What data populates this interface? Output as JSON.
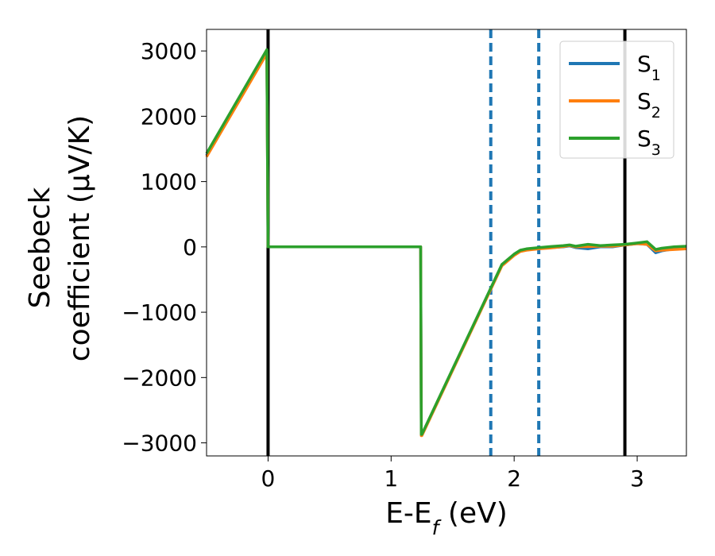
{
  "chart_data": {
    "type": "line",
    "xlabel": "E-E_f (eV)",
    "ylabel_line1": "Seebeck",
    "ylabel_line2": "coefficient  (μV/K)",
    "xlim": [
      -0.5,
      3.4
    ],
    "ylim": [
      -3200,
      3330
    ],
    "x_ticks": [
      0,
      1,
      2,
      3
    ],
    "y_ticks": [
      -3000,
      -2000,
      -1000,
      0,
      1000,
      2000,
      3000
    ],
    "y_tick_labels": [
      "−3000",
      "−2000",
      "−1000",
      "0",
      "1000",
      "2000",
      "3000"
    ],
    "grid": false,
    "legend_position": "top-right",
    "vlines": [
      {
        "x": 0.0,
        "style": "solid",
        "color": "#000000"
      },
      {
        "x": 2.9,
        "style": "solid",
        "color": "#000000"
      },
      {
        "x": 1.81,
        "style": "dashed",
        "color": "#1f77b4"
      },
      {
        "x": 2.2,
        "style": "dashed",
        "color": "#1f77b4"
      }
    ],
    "series": [
      {
        "name": "S1",
        "label_base": "S",
        "label_sub": "1",
        "color": "#1f77b4",
        "x": [
          -0.5,
          -0.01,
          0.0,
          0.02,
          1.24,
          1.245,
          1.25,
          1.5,
          1.75,
          1.9,
          2.0,
          2.05,
          2.1,
          2.2,
          2.3,
          2.4,
          2.45,
          2.5,
          2.6,
          2.7,
          2.8,
          2.9,
          3.0,
          3.08,
          3.15,
          3.2,
          3.3,
          3.4
        ],
        "y": [
          1400,
          2990,
          0,
          0,
          0,
          -2880,
          -2880,
          -1880,
          -880,
          -280,
          -120,
          -60,
          -40,
          -20,
          -10,
          0,
          15,
          -10,
          -30,
          0,
          0,
          30,
          50,
          40,
          -90,
          -60,
          -30,
          -20
        ]
      },
      {
        "name": "S2",
        "label_base": "S",
        "label_sub": "2",
        "color": "#ff7f0e",
        "x": [
          -0.5,
          -0.01,
          0.0,
          0.02,
          1.24,
          1.245,
          1.25,
          1.5,
          1.75,
          1.9,
          2.0,
          2.05,
          2.1,
          2.2,
          2.3,
          2.4,
          2.45,
          2.5,
          2.6,
          2.7,
          2.8,
          2.9,
          3.0,
          3.08,
          3.15,
          3.2,
          3.3,
          3.4
        ],
        "y": [
          1380,
          2960,
          0,
          0,
          0,
          -2890,
          -2890,
          -1890,
          -890,
          -290,
          -130,
          -70,
          -50,
          -30,
          -15,
          5,
          20,
          0,
          5,
          10,
          10,
          30,
          50,
          40,
          -60,
          -50,
          -40,
          -30
        ]
      },
      {
        "name": "S3",
        "label_base": "S",
        "label_sub": "3",
        "color": "#2ca02c",
        "x": [
          -0.5,
          -0.01,
          0.0,
          0.02,
          1.24,
          1.245,
          1.25,
          1.5,
          1.75,
          1.9,
          2.0,
          2.05,
          2.1,
          2.2,
          2.3,
          2.4,
          2.45,
          2.5,
          2.6,
          2.7,
          2.8,
          2.9,
          3.0,
          3.08,
          3.15,
          3.2,
          3.3,
          3.4
        ],
        "y": [
          1430,
          3020,
          0,
          0,
          0,
          -2870,
          -2870,
          -1870,
          -870,
          -270,
          -110,
          -50,
          -30,
          -10,
          5,
          20,
          30,
          10,
          40,
          20,
          30,
          40,
          60,
          80,
          -40,
          -20,
          0,
          10
        ]
      }
    ]
  }
}
